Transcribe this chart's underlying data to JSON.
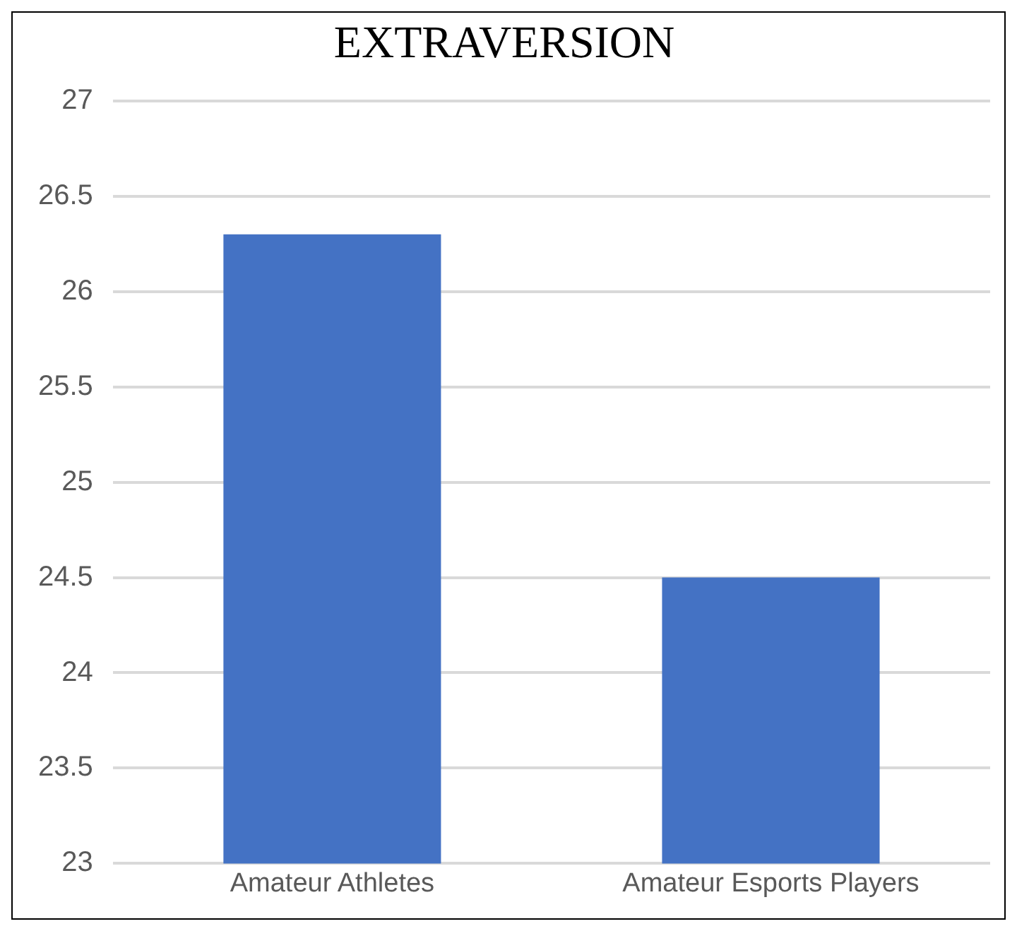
{
  "chart_data": {
    "type": "bar",
    "title": "EXTRAVERSION",
    "categories": [
      "Amateur Athletes",
      "Amateur Esports Players"
    ],
    "values": [
      26.3,
      24.5
    ],
    "color": "#4472c4",
    "ylim": [
      23,
      27
    ],
    "yticks": [
      23,
      23.5,
      24,
      24.5,
      25,
      25.5,
      26,
      26.5,
      27
    ],
    "grid": "y",
    "legend": false
  }
}
